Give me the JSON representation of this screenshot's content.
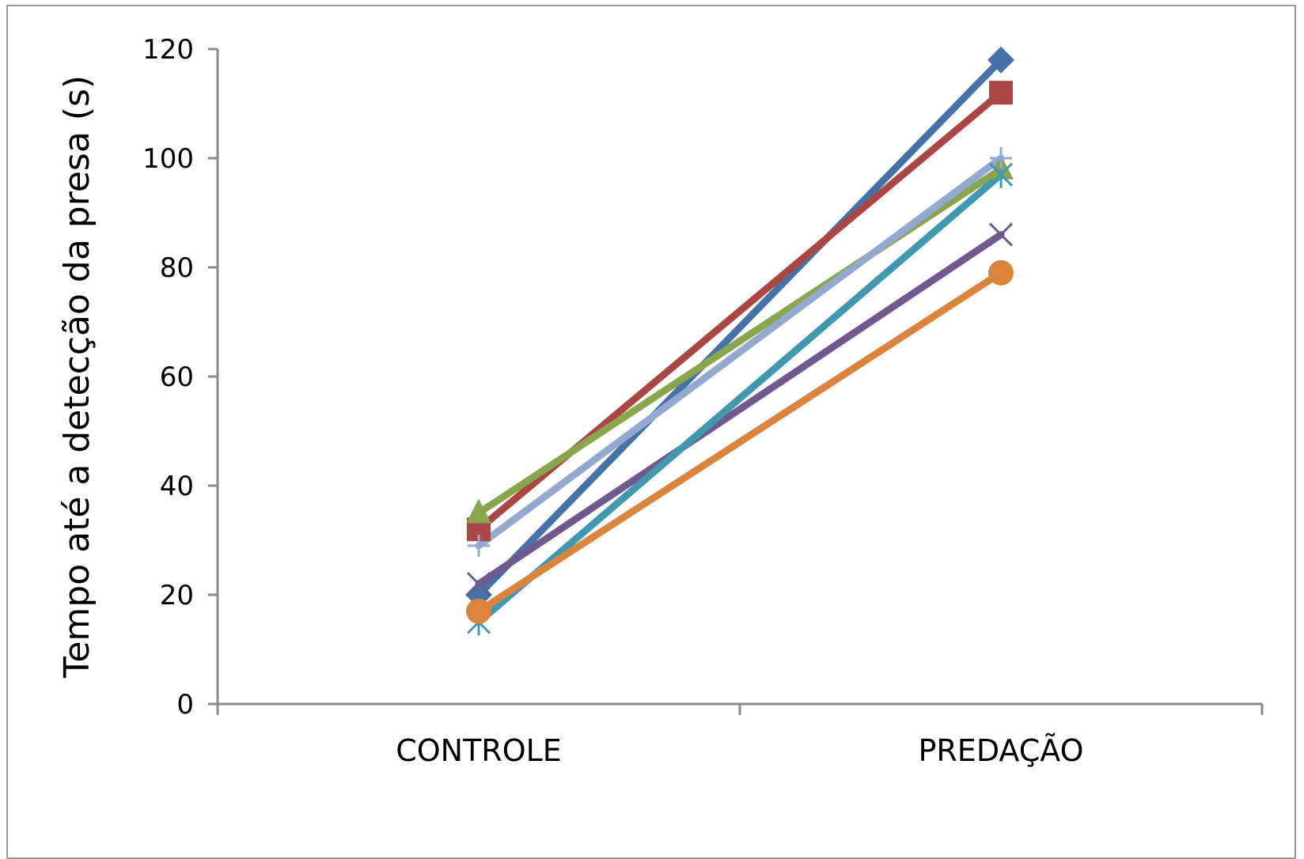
{
  "chart_data": {
    "type": "line",
    "categories": [
      "CONTROLE",
      "PREDAÇÃO"
    ],
    "ylabel": "Tempo até a detecção  da presa (s)",
    "xlabel": "",
    "ylim": [
      0,
      120
    ],
    "yticks": [
      0,
      20,
      40,
      60,
      80,
      100,
      120
    ],
    "grid": false,
    "legend": "none",
    "series": [
      {
        "values": [
          20,
          118
        ],
        "color": "#4572A7",
        "marker": "diamond"
      },
      {
        "values": [
          32,
          112
        ],
        "color": "#AA4643",
        "marker": "square"
      },
      {
        "values": [
          35,
          98
        ],
        "color": "#89A54E",
        "marker": "triangle"
      },
      {
        "values": [
          22,
          86
        ],
        "color": "#71588F",
        "marker": "x"
      },
      {
        "values": [
          15,
          97
        ],
        "color": "#4198AF",
        "marker": "star"
      },
      {
        "values": [
          17,
          79
        ],
        "color": "#DB843D",
        "marker": "circle"
      },
      {
        "values": [
          29,
          100
        ],
        "color": "#93A9CF",
        "marker": "plus"
      }
    ]
  }
}
